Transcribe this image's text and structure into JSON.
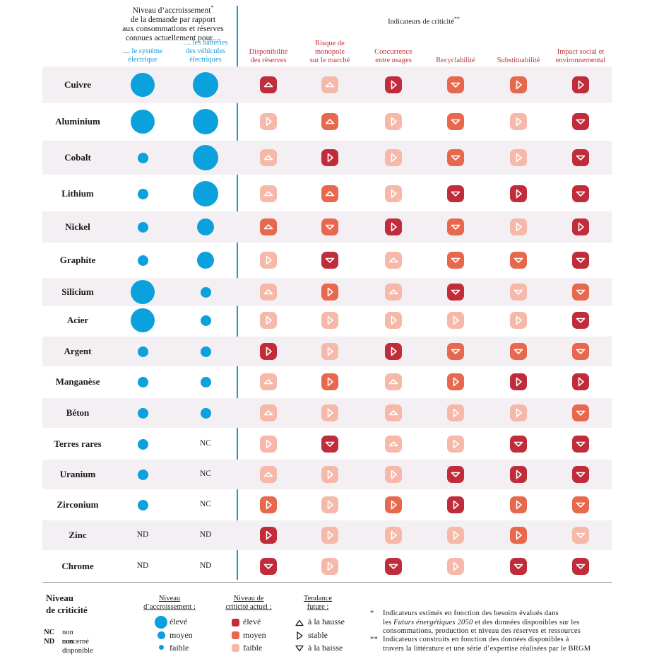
{
  "headers": {
    "demand_title": "Niveau d’accroissement* de la demande par rapport aux consommations et réserves connues actuellement pour....",
    "demand_line1": "Niveau d’accroissement",
    "demand_line1_sup": "*",
    "demand_line2": "de la demande par rapport",
    "demand_line3": "aux consommations et réserves",
    "demand_line4": "connues actuellement pour....",
    "col_system_1": ".... le système",
    "col_system_2": "électrique",
    "col_battery_1": ".... les batteries",
    "col_battery_2": "des véhicules",
    "col_battery_3": "électriques",
    "criticity_title": "Indicateurs de criticité",
    "criticity_sup": "**",
    "indicators": [
      {
        "l1": "Disponibilité",
        "l2": "des réserves",
        "l3": ""
      },
      {
        "l1": "Risque de",
        "l2": "monopole",
        "l3": "sur le marché"
      },
      {
        "l1": "Concurrence",
        "l2": "entre usages",
        "l3": ""
      },
      {
        "l1": "Recyclabilité",
        "l2": "",
        "l3": ""
      },
      {
        "l1": "Substituabilité",
        "l2": "",
        "l3": ""
      },
      {
        "l1": "Impact social et",
        "l2": "environnemental",
        "l3": ""
      }
    ]
  },
  "colors": {
    "blue": "#0aa1dc",
    "level_high": "#c12c3a",
    "level_medium": "#e8684e",
    "level_low": "#f6b8a8",
    "row_bg": "#f3eff3",
    "divider": "#1a9ad6"
  },
  "chart_data": {
    "type": "table",
    "encoding": {
      "demand": "E = élevé, M = moyen, F = faible; text values NC / ND printed as-is",
      "criticity": "level h/m/l + tendance up/stable/down"
    },
    "rows": [
      {
        "material": "Cuivre",
        "system": "E",
        "battery": "E",
        "indicators": [
          [
            "h",
            "up"
          ],
          [
            "l",
            "up"
          ],
          [
            "h",
            "stable"
          ],
          [
            "m",
            "down"
          ],
          [
            "m",
            "stable"
          ],
          [
            "h",
            "stable"
          ]
        ]
      },
      {
        "material": "Aluminium",
        "system": "E",
        "battery": "E",
        "indicators": [
          [
            "l",
            "stable"
          ],
          [
            "m",
            "up"
          ],
          [
            "l",
            "stable"
          ],
          [
            "m",
            "down"
          ],
          [
            "l",
            "stable"
          ],
          [
            "h",
            "down"
          ]
        ]
      },
      {
        "material": "Cobalt",
        "system": "F",
        "battery": "E",
        "indicators": [
          [
            "l",
            "up"
          ],
          [
            "h",
            "stable"
          ],
          [
            "l",
            "stable"
          ],
          [
            "m",
            "down"
          ],
          [
            "l",
            "stable"
          ],
          [
            "h",
            "down"
          ]
        ]
      },
      {
        "material": "Lithium",
        "system": "F",
        "battery": "E",
        "indicators": [
          [
            "l",
            "up"
          ],
          [
            "m",
            "up"
          ],
          [
            "l",
            "stable"
          ],
          [
            "h",
            "down"
          ],
          [
            "h",
            "stable"
          ],
          [
            "h",
            "down"
          ]
        ]
      },
      {
        "material": "Nickel",
        "system": "F",
        "battery": "M",
        "indicators": [
          [
            "m",
            "up"
          ],
          [
            "m",
            "down"
          ],
          [
            "h",
            "stable"
          ],
          [
            "m",
            "down"
          ],
          [
            "l",
            "stable"
          ],
          [
            "h",
            "stable"
          ]
        ]
      },
      {
        "material": "Graphite",
        "system": "F",
        "battery": "M",
        "indicators": [
          [
            "l",
            "stable"
          ],
          [
            "h",
            "down"
          ],
          [
            "l",
            "up"
          ],
          [
            "m",
            "down"
          ],
          [
            "m",
            "down"
          ],
          [
            "h",
            "down"
          ]
        ]
      },
      {
        "material": "Silicium",
        "system": "E",
        "battery": "F",
        "indicators": [
          [
            "l",
            "up"
          ],
          [
            "m",
            "stable"
          ],
          [
            "l",
            "up"
          ],
          [
            "h",
            "down"
          ],
          [
            "l",
            "down"
          ],
          [
            "m",
            "down"
          ]
        ]
      },
      {
        "material": "Acier",
        "system": "E",
        "battery": "F",
        "indicators": [
          [
            "l",
            "stable"
          ],
          [
            "l",
            "stable"
          ],
          [
            "l",
            "stable"
          ],
          [
            "l",
            "stable"
          ],
          [
            "l",
            "stable"
          ],
          [
            "h",
            "down"
          ]
        ]
      },
      {
        "material": "Argent",
        "system": "F",
        "battery": "F",
        "indicators": [
          [
            "h",
            "stable"
          ],
          [
            "l",
            "stable"
          ],
          [
            "h",
            "stable"
          ],
          [
            "m",
            "down"
          ],
          [
            "m",
            "down"
          ],
          [
            "m",
            "down"
          ]
        ]
      },
      {
        "material": "Manganèse",
        "system": "F",
        "battery": "F",
        "indicators": [
          [
            "l",
            "up"
          ],
          [
            "m",
            "stable"
          ],
          [
            "l",
            "up"
          ],
          [
            "m",
            "stable"
          ],
          [
            "h",
            "stable"
          ],
          [
            "h",
            "stable"
          ]
        ]
      },
      {
        "material": "Béton",
        "system": "F",
        "battery": "F",
        "indicators": [
          [
            "l",
            "up"
          ],
          [
            "l",
            "stable"
          ],
          [
            "l",
            "up"
          ],
          [
            "l",
            "stable"
          ],
          [
            "l",
            "stable"
          ],
          [
            "m",
            "down"
          ]
        ]
      },
      {
        "material": "Terres rares",
        "system": "F",
        "battery": "NC",
        "indicators": [
          [
            "l",
            "stable"
          ],
          [
            "h",
            "down"
          ],
          [
            "l",
            "up"
          ],
          [
            "l",
            "stable"
          ],
          [
            "h",
            "down"
          ],
          [
            "h",
            "down"
          ]
        ]
      },
      {
        "material": "Uranium",
        "system": "F",
        "battery": "NC",
        "indicators": [
          [
            "l",
            "up"
          ],
          [
            "l",
            "stable"
          ],
          [
            "l",
            "stable"
          ],
          [
            "h",
            "down"
          ],
          [
            "h",
            "stable"
          ],
          [
            "h",
            "down"
          ]
        ]
      },
      {
        "material": "Zirconium",
        "system": "F",
        "battery": "NC",
        "indicators": [
          [
            "m",
            "stable"
          ],
          [
            "l",
            "stable"
          ],
          [
            "m",
            "stable"
          ],
          [
            "h",
            "stable"
          ],
          [
            "m",
            "stable"
          ],
          [
            "m",
            "down"
          ]
        ]
      },
      {
        "material": "Zinc",
        "system": "ND",
        "battery": "ND",
        "indicators": [
          [
            "h",
            "stable"
          ],
          [
            "l",
            "stable"
          ],
          [
            "l",
            "stable"
          ],
          [
            "l",
            "stable"
          ],
          [
            "m",
            "stable"
          ],
          [
            "l",
            "down"
          ]
        ]
      },
      {
        "material": "Chrome",
        "system": "ND",
        "battery": "ND",
        "indicators": [
          [
            "h",
            "down"
          ],
          [
            "l",
            "stable"
          ],
          [
            "h",
            "down"
          ],
          [
            "l",
            "stable"
          ],
          [
            "h",
            "down"
          ],
          [
            "h",
            "down"
          ]
        ]
      }
    ]
  },
  "legend": {
    "title_1": "Niveau",
    "title_2": "de criticité",
    "nc_abbr": "NC",
    "nc_text": "non concerné",
    "nd_abbr": "ND",
    "nd_text": "non disponible",
    "demand_head_1": "Niveau",
    "demand_head_2": "d’accroissement :",
    "current_head_1": "Niveau de",
    "current_head_2": "criticité actuel :",
    "trend_head_1": "Tendance",
    "trend_head_2": "future :",
    "high": "élevé",
    "medium": "moyen",
    "low": "faible",
    "up": "à la hausse",
    "stable": "stable",
    "down": "à la baisse",
    "note1_mark": "*",
    "note1_l1": "Indicateurs estimés en fonction des besoins évalués dans",
    "note1_l2a": "les ",
    "note1_l2i": "Futurs énergétiques 2050",
    "note1_l2b": " et des données disponibles sur les",
    "note1_l3": "consommations, production et niveau des réserves et ressources",
    "note2_mark": "**",
    "note2_l1": "Indicateurs construits en fonction des données disponibles à",
    "note2_l2": "travers la littérature et une série d’expertise réalisées par le BRGM"
  }
}
